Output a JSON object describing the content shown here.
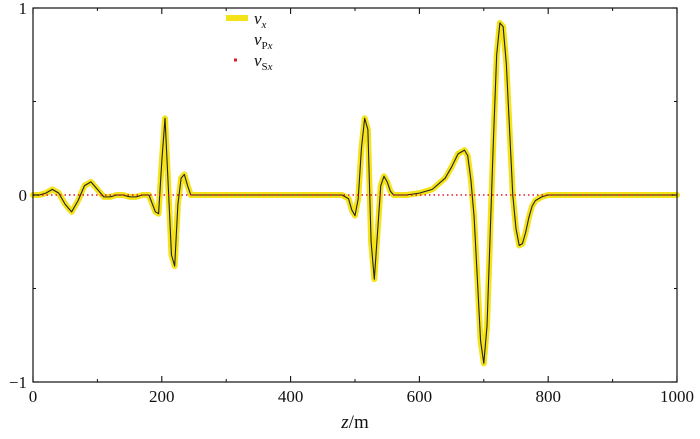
{
  "chart_data": {
    "type": "line",
    "title": "",
    "xlabel": "z/m",
    "xlabel_parts": {
      "var": "z",
      "unit": "/m"
    },
    "ylabel": "",
    "xlim": [
      0,
      1000
    ],
    "ylim": [
      -1,
      1
    ],
    "x_ticks": [
      0,
      200,
      400,
      600,
      800,
      1000
    ],
    "y_ticks": [
      -1,
      0,
      1
    ],
    "x_tick_labels": [
      "0",
      "200",
      "400",
      "600",
      "800",
      "1000"
    ],
    "y_tick_labels": [
      "−1",
      "0",
      "1"
    ],
    "grid": false,
    "legend_position": "top-left",
    "series": [
      {
        "name": "v_x",
        "label": {
          "base": "v",
          "sub": "x"
        },
        "color": "#f5e31a",
        "style": "thick-line",
        "x": [
          0,
          10,
          20,
          30,
          40,
          50,
          60,
          70,
          80,
          90,
          100,
          110,
          120,
          130,
          140,
          150,
          160,
          170,
          180,
          190,
          195,
          200,
          205,
          210,
          215,
          220,
          225,
          230,
          235,
          240,
          245,
          250,
          260,
          280,
          300,
          350,
          400,
          450,
          470,
          480,
          490,
          495,
          500,
          505,
          510,
          515,
          520,
          525,
          530,
          535,
          540,
          545,
          550,
          555,
          560,
          570,
          580,
          600,
          620,
          640,
          650,
          660,
          670,
          675,
          680,
          685,
          690,
          695,
          700,
          705,
          710,
          715,
          720,
          725,
          730,
          735,
          740,
          745,
          750,
          755,
          760,
          765,
          770,
          775,
          780,
          790,
          800,
          820,
          850,
          900,
          950,
          1000
        ],
        "values": [
          0,
          0,
          0.01,
          0.03,
          0.01,
          -0.05,
          -0.09,
          -0.03,
          0.05,
          0.07,
          0.03,
          -0.01,
          -0.01,
          0,
          0,
          -0.01,
          -0.01,
          0,
          0,
          -0.09,
          -0.1,
          0.18,
          0.41,
          0.05,
          -0.32,
          -0.38,
          -0.05,
          0.09,
          0.11,
          0.05,
          0,
          0,
          0,
          0,
          0,
          0,
          0,
          0,
          0,
          0,
          -0.02,
          -0.08,
          -0.11,
          -0.02,
          0.25,
          0.41,
          0.35,
          -0.25,
          -0.45,
          -0.2,
          0.05,
          0.1,
          0.07,
          0.02,
          0,
          0,
          0,
          0.01,
          0.03,
          0.09,
          0.15,
          0.22,
          0.24,
          0.21,
          0.08,
          -0.12,
          -0.45,
          -0.78,
          -0.9,
          -0.7,
          -0.2,
          0.3,
          0.75,
          0.92,
          0.9,
          0.7,
          0.35,
          0,
          -0.18,
          -0.27,
          -0.26,
          -0.2,
          -0.12,
          -0.06,
          -0.03,
          -0.01,
          0,
          0,
          0,
          0,
          0,
          0
        ]
      },
      {
        "name": "v_Px",
        "label": {
          "base": "v",
          "sub": "Px"
        },
        "color": "#222222",
        "style": "thin-line",
        "x": [
          0,
          10,
          20,
          30,
          40,
          50,
          60,
          70,
          80,
          90,
          100,
          110,
          120,
          130,
          140,
          150,
          160,
          170,
          180,
          190,
          195,
          200,
          205,
          210,
          215,
          220,
          225,
          230,
          235,
          240,
          245,
          250,
          260,
          280,
          300,
          350,
          400,
          450,
          470,
          480,
          490,
          495,
          500,
          505,
          510,
          515,
          520,
          525,
          530,
          535,
          540,
          545,
          550,
          555,
          560,
          570,
          580,
          600,
          620,
          640,
          650,
          660,
          670,
          675,
          680,
          685,
          690,
          695,
          700,
          705,
          710,
          715,
          720,
          725,
          730,
          735,
          740,
          745,
          750,
          755,
          760,
          765,
          770,
          775,
          780,
          790,
          800,
          820,
          850,
          900,
          950,
          1000
        ],
        "values": [
          0,
          0,
          0.01,
          0.03,
          0.01,
          -0.05,
          -0.09,
          -0.03,
          0.05,
          0.07,
          0.03,
          -0.01,
          -0.01,
          0,
          0,
          -0.01,
          -0.01,
          0,
          0,
          -0.09,
          -0.1,
          0.18,
          0.41,
          0.05,
          -0.32,
          -0.38,
          -0.05,
          0.09,
          0.11,
          0.05,
          0,
          0,
          0,
          0,
          0,
          0,
          0,
          0,
          0,
          0,
          -0.02,
          -0.08,
          -0.11,
          -0.02,
          0.25,
          0.41,
          0.35,
          -0.25,
          -0.45,
          -0.2,
          0.05,
          0.1,
          0.07,
          0.02,
          0,
          0,
          0,
          0.01,
          0.03,
          0.09,
          0.15,
          0.22,
          0.24,
          0.21,
          0.08,
          -0.12,
          -0.45,
          -0.78,
          -0.9,
          -0.7,
          -0.2,
          0.3,
          0.75,
          0.92,
          0.9,
          0.7,
          0.35,
          0,
          -0.18,
          -0.27,
          -0.26,
          -0.2,
          -0.12,
          -0.06,
          -0.03,
          -0.01,
          0,
          0,
          0,
          0,
          0,
          0
        ]
      },
      {
        "name": "v_Sx",
        "label": {
          "base": "v",
          "sub": "Sx"
        },
        "color": "#e0192a",
        "style": "dotted",
        "x": [
          0,
          1000
        ],
        "values": [
          0,
          0
        ]
      }
    ]
  }
}
